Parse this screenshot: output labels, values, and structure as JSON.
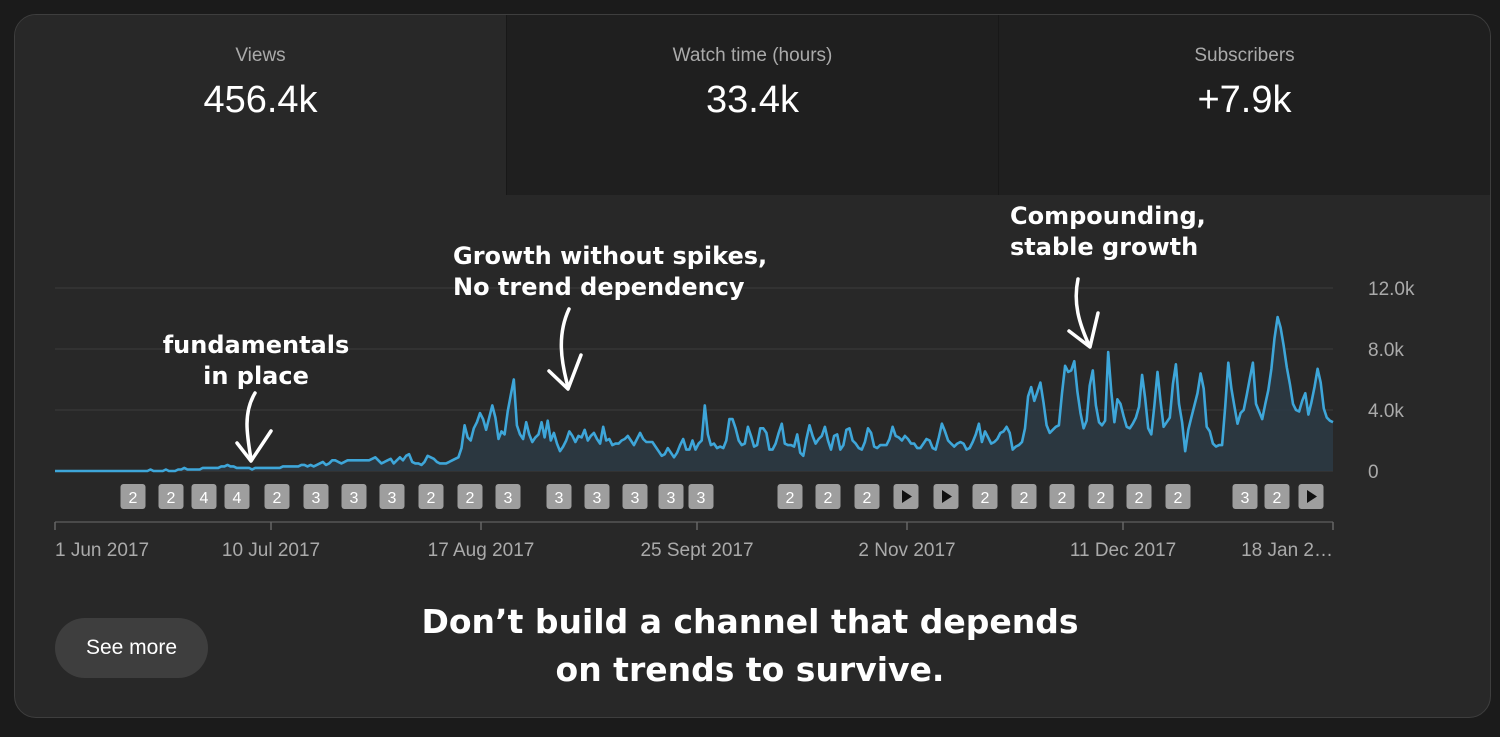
{
  "metrics": [
    {
      "label": "Views",
      "value": "456.4k"
    },
    {
      "label": "Watch time (hours)",
      "value": "33.4k"
    },
    {
      "label": "Subscribers",
      "value": "+7.9k"
    }
  ],
  "annotations": {
    "fundamentals": "fundamentals\nin place",
    "growth": "Growth without spikes,\nNo trend dependency",
    "compounding": "Compounding,\nstable growth"
  },
  "caption": "Don’t build a channel that\ndepends on trends to survive.",
  "see_more_label": "See more",
  "colors": {
    "line": "#3ea6d9",
    "fill": "#2c3a44",
    "badge": "#9e9e9e",
    "badge_text": "#ffffff"
  },
  "chart_data": {
    "type": "area",
    "x_tick_labels": [
      "1 Jun 2017",
      "10 Jul 2017",
      "17 Aug 2017",
      "25 Sept 2017",
      "2 Nov 2017",
      "11 Dec 2017",
      "18 Jan 2…"
    ],
    "y_tick_labels": [
      "0",
      "4.0k",
      "8.0k",
      "12.0k"
    ],
    "ylim": [
      0,
      12000
    ],
    "grid": true,
    "series": [
      {
        "values": [
          0,
          0,
          0,
          0,
          0,
          0,
          0,
          0,
          0,
          0,
          0,
          0,
          0,
          0,
          0,
          0,
          0,
          0,
          0,
          0,
          0,
          0,
          0,
          0,
          0,
          0,
          0,
          0,
          0,
          0,
          0,
          100,
          0,
          0,
          0,
          0,
          100,
          0,
          0,
          0,
          100,
          100,
          200,
          100,
          100,
          100,
          100,
          100,
          200,
          200,
          200,
          200,
          200,
          200,
          300,
          300,
          400,
          300,
          300,
          200,
          200,
          200,
          200,
          200,
          100,
          200,
          200,
          200,
          200,
          200,
          200,
          200,
          200,
          200,
          300,
          300,
          300,
          300,
          300,
          300,
          400,
          400,
          300,
          400,
          300,
          400,
          500,
          600,
          400,
          500,
          700,
          700,
          600,
          500,
          600,
          700,
          700,
          700,
          700,
          700,
          700,
          700,
          700,
          800,
          900,
          700,
          500,
          600,
          700,
          800,
          500,
          700,
          900,
          700,
          1000,
          1100,
          600,
          500,
          500,
          400,
          600,
          1000,
          900,
          800,
          600,
          500,
          500,
          500,
          600,
          700,
          800,
          900,
          1500,
          3000,
          2200,
          2000,
          2800,
          3200,
          3800,
          3400,
          2700,
          3500,
          4300,
          3500,
          2100,
          2600,
          2400,
          3900,
          5000,
          6000,
          3000,
          2400,
          2100,
          3200,
          2400,
          1900,
          2200,
          2400,
          3200,
          2200,
          3300,
          2000,
          2500,
          1800,
          1300,
          1600,
          2000,
          2600,
          2300,
          1900,
          2300,
          2200,
          2700,
          2000,
          2300,
          2500,
          2100,
          1800,
          2900,
          2000,
          2100,
          1700,
          1800,
          1800,
          2000,
          2100,
          2300,
          2000,
          1700,
          2100,
          2500,
          2100,
          1900,
          1900,
          1900,
          1600,
          1300,
          1000,
          1100,
          1500,
          1200,
          900,
          1200,
          1700,
          2100,
          1400,
          1400,
          2000,
          1400,
          1800,
          2000,
          4300,
          2400,
          1700,
          1800,
          1500,
          1600,
          1500,
          2000,
          3400,
          3400,
          2800,
          2000,
          1700,
          1800,
          2900,
          2300,
          1600,
          1700,
          2800,
          2800,
          2500,
          1400,
          1400,
          1800,
          2500,
          3100,
          1800,
          1700,
          1700,
          1600,
          2400,
          1200,
          1000,
          2100,
          3000,
          2300,
          1800,
          2100,
          2300,
          2900,
          2000,
          1400,
          2300,
          2400,
          1400,
          1700,
          2700,
          2800,
          2000,
          1800,
          1500,
          1400,
          1900,
          2800,
          2500,
          1600,
          1500,
          1700,
          1700,
          1700,
          2100,
          2900,
          2300,
          2200,
          2000,
          2300,
          2100,
          1800,
          1800,
          1500,
          1500,
          1800,
          2100,
          2000,
          1500,
          1400,
          2200,
          3100,
          2600,
          2000,
          1800,
          1600,
          1800,
          1900,
          1800,
          1400,
          1500,
          1900,
          2400,
          3100,
          1900,
          2600,
          2200,
          1800,
          1900,
          2100,
          2500,
          2600,
          2900,
          2500,
          1400,
          1600,
          1700,
          1900,
          2800,
          4900,
          5500,
          4600,
          5200,
          5800,
          4500,
          3000,
          2500,
          2700,
          2900,
          3000,
          5100,
          6900,
          6500,
          6600,
          7200,
          5200,
          3800,
          2800,
          3300,
          5600,
          6600,
          4300,
          3200,
          3000,
          3300,
          7800,
          5200,
          3200,
          4700,
          4400,
          3600,
          2900,
          2800,
          3100,
          3500,
          4200,
          6300,
          4800,
          2800,
          2400,
          4300,
          6500,
          4600,
          2900,
          3200,
          3500,
          5700,
          7000,
          4400,
          3200,
          1300,
          2700,
          3500,
          4300,
          5100,
          6400,
          5400,
          2900,
          2600,
          1800,
          1600,
          1700,
          1700,
          4200,
          7100,
          5400,
          4200,
          3100,
          3800,
          4000,
          5000,
          6100,
          7100,
          4400,
          3900,
          3400,
          4400,
          5300,
          6700,
          8700,
          10100,
          9400,
          8200,
          6800,
          5700,
          4400,
          4000,
          3900,
          4600,
          5100,
          3700,
          4500,
          5500,
          6700,
          5800,
          4100,
          3500,
          3300,
          3200
        ]
      }
    ],
    "markers": [
      {
        "label": "2"
      },
      {
        "label": "2"
      },
      {
        "label": "4"
      },
      {
        "label": "4"
      },
      {
        "label": "2"
      },
      {
        "label": "3"
      },
      {
        "label": "3"
      },
      {
        "label": "3"
      },
      {
        "label": "2"
      },
      {
        "label": "2"
      },
      {
        "label": "3"
      },
      {
        "label": "3"
      },
      {
        "label": "3"
      },
      {
        "label": "3"
      },
      {
        "label": "3"
      },
      {
        "label": "3"
      },
      {
        "label": "2"
      },
      {
        "label": "2"
      },
      {
        "label": "2"
      },
      {
        "label": "play"
      },
      {
        "label": "play"
      },
      {
        "label": "2"
      },
      {
        "label": "2"
      },
      {
        "label": "2"
      },
      {
        "label": "2"
      },
      {
        "label": "2"
      },
      {
        "label": "2"
      },
      {
        "label": "3"
      },
      {
        "label": "2"
      },
      {
        "label": "play"
      }
    ]
  }
}
